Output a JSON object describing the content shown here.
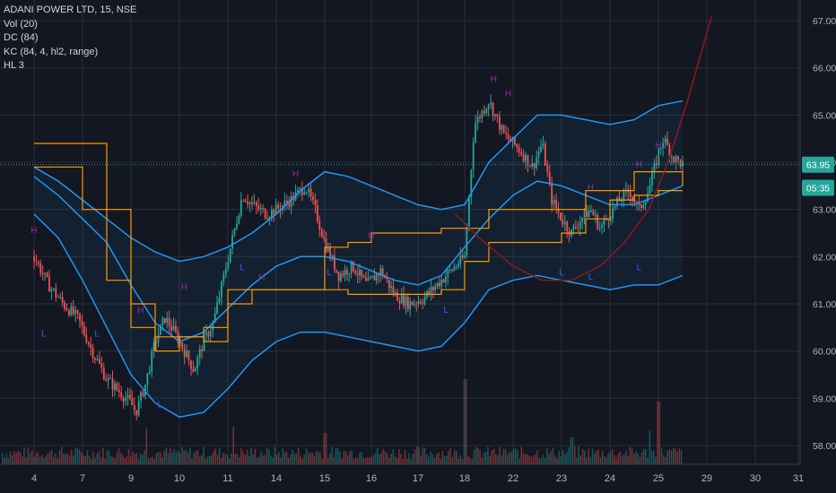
{
  "legend": {
    "symbol": "ADANI POWER LTD, 15, NSE",
    "indicators": [
      "Vol (20)",
      "DC (84)",
      "KC (84, 4, hl2, range)",
      "HL 3"
    ]
  },
  "colors": {
    "background": "#131722",
    "grid": "#2a2e39",
    "up": "#26a69a",
    "down": "#ef5350",
    "keltner": "#2196f3",
    "donchian": "#ff9800",
    "arc": "#8b1a1a",
    "pivot_high": "#9c27b0",
    "pivot_low": "#2962ff",
    "last_price_badge": "#26a69a",
    "timer_badge": "#26a69a"
  },
  "chart_data": {
    "type": "candlestick",
    "y_axis": {
      "ticks": [
        "58.00",
        "59.00",
        "60.00",
        "61.00",
        "62.00",
        "63.00",
        "64.00",
        "65.00",
        "66.00",
        "67.00"
      ],
      "ylim": [
        57.6,
        67.4
      ]
    },
    "x_axis": {
      "ticks": [
        "4",
        "7",
        "9",
        "10",
        "11",
        "14",
        "15",
        "16",
        "17",
        "18",
        "22",
        "23",
        "24",
        "25",
        "29",
        "30",
        "31"
      ],
      "tick_index": [
        0,
        1,
        2,
        3,
        4,
        5,
        6,
        7,
        8,
        9,
        10,
        11,
        12,
        13,
        14,
        15,
        16
      ]
    },
    "last_price": {
      "label": "63.95",
      "value": 63.95
    },
    "countdown": {
      "label": "05:35",
      "value": 63.46
    },
    "keltner_upper": [
      [
        0,
        63.9
      ],
      [
        0.5,
        63.6
      ],
      [
        1,
        63.2
      ],
      [
        1.5,
        62.8
      ],
      [
        2,
        62.4
      ],
      [
        2.5,
        62.1
      ],
      [
        3,
        61.9
      ],
      [
        3.5,
        62.0
      ],
      [
        4,
        62.2
      ],
      [
        4.5,
        62.5
      ],
      [
        5,
        62.9
      ],
      [
        5.5,
        63.4
      ],
      [
        6,
        63.8
      ],
      [
        6.5,
        63.7
      ],
      [
        7,
        63.5
      ],
      [
        7.5,
        63.3
      ],
      [
        8,
        63.1
      ],
      [
        8.5,
        63.0
      ],
      [
        9,
        63.1
      ],
      [
        9.5,
        64.0
      ],
      [
        10,
        64.5
      ],
      [
        10.5,
        65.0
      ],
      [
        11,
        65.0
      ],
      [
        11.5,
        64.9
      ],
      [
        12,
        64.8
      ],
      [
        12.5,
        64.9
      ],
      [
        13,
        65.2
      ],
      [
        13.5,
        65.3
      ]
    ],
    "keltner_mid": [
      [
        0,
        63.7
      ],
      [
        0.5,
        63.3
      ],
      [
        1,
        62.8
      ],
      [
        1.5,
        62.3
      ],
      [
        2,
        61.4
      ],
      [
        2.5,
        60.6
      ],
      [
        3,
        60.2
      ],
      [
        3.5,
        60.4
      ],
      [
        4,
        60.9
      ],
      [
        4.5,
        61.4
      ],
      [
        5,
        61.8
      ],
      [
        5.5,
        62.0
      ],
      [
        6,
        62.0
      ],
      [
        6.5,
        61.9
      ],
      [
        7,
        61.7
      ],
      [
        7.5,
        61.5
      ],
      [
        8,
        61.4
      ],
      [
        8.5,
        61.6
      ],
      [
        9,
        62.2
      ],
      [
        9.5,
        62.8
      ],
      [
        10,
        63.3
      ],
      [
        10.5,
        63.6
      ],
      [
        11,
        63.5
      ],
      [
        11.5,
        63.3
      ],
      [
        12,
        63.1
      ],
      [
        12.5,
        63.1
      ],
      [
        13,
        63.3
      ],
      [
        13.5,
        63.5
      ]
    ],
    "keltner_lower": [
      [
        0,
        62.9
      ],
      [
        0.5,
        62.4
      ],
      [
        1,
        61.5
      ],
      [
        1.5,
        60.5
      ],
      [
        2,
        59.5
      ],
      [
        2.5,
        58.9
      ],
      [
        3,
        58.6
      ],
      [
        3.5,
        58.7
      ],
      [
        4,
        59.2
      ],
      [
        4.5,
        59.8
      ],
      [
        5,
        60.2
      ],
      [
        5.5,
        60.4
      ],
      [
        6,
        60.4
      ],
      [
        6.5,
        60.3
      ],
      [
        7,
        60.2
      ],
      [
        7.5,
        60.1
      ],
      [
        8,
        60.0
      ],
      [
        8.5,
        60.1
      ],
      [
        9,
        60.6
      ],
      [
        9.5,
        61.3
      ],
      [
        10,
        61.5
      ],
      [
        10.5,
        61.6
      ],
      [
        11,
        61.5
      ],
      [
        11.5,
        61.4
      ],
      [
        12,
        61.3
      ],
      [
        12.5,
        61.4
      ],
      [
        13,
        61.4
      ],
      [
        13.5,
        61.6
      ]
    ],
    "donchian_upper": [
      [
        0,
        64.4
      ],
      [
        1,
        64.4
      ],
      [
        1.5,
        63.0
      ],
      [
        2,
        61.0
      ],
      [
        2.5,
        60.3
      ],
      [
        3,
        60.3
      ],
      [
        3.5,
        60.2
      ],
      [
        4,
        61.3
      ],
      [
        4.5,
        61.3
      ],
      [
        5,
        61.3
      ],
      [
        5.5,
        61.3
      ],
      [
        6,
        62.2
      ],
      [
        6.5,
        62.3
      ],
      [
        7,
        62.5
      ],
      [
        8,
        62.5
      ],
      [
        8.5,
        62.6
      ],
      [
        9,
        62.6
      ],
      [
        9.5,
        63.0
      ],
      [
        10,
        63.0
      ],
      [
        10.5,
        63.0
      ],
      [
        11,
        63.0
      ],
      [
        11.5,
        63.4
      ],
      [
        12,
        63.4
      ],
      [
        12.5,
        63.8
      ],
      [
        13,
        63.8
      ],
      [
        13.5,
        63.5
      ]
    ],
    "donchian_lower": [
      [
        0,
        63.9
      ],
      [
        1,
        63.0
      ],
      [
        1.5,
        61.5
      ],
      [
        2,
        60.5
      ],
      [
        2.5,
        60.0
      ],
      [
        3,
        60.3
      ],
      [
        3.5,
        60.5
      ],
      [
        4,
        61.0
      ],
      [
        4.5,
        61.3
      ],
      [
        5,
        61.3
      ],
      [
        5.5,
        61.3
      ],
      [
        6,
        61.3
      ],
      [
        6.5,
        61.2
      ],
      [
        7,
        61.2
      ],
      [
        7.5,
        61.2
      ],
      [
        8,
        61.2
      ],
      [
        8.5,
        61.3
      ],
      [
        9,
        61.9
      ],
      [
        9.5,
        62.3
      ],
      [
        10,
        62.3
      ],
      [
        10.5,
        62.3
      ],
      [
        11,
        62.5
      ],
      [
        11.5,
        62.8
      ],
      [
        12,
        63.2
      ],
      [
        12.5,
        63.3
      ],
      [
        13,
        63.4
      ],
      [
        13.5,
        63.4
      ]
    ],
    "arc": [
      [
        8.8,
        62.9
      ],
      [
        9.3,
        62.4
      ],
      [
        10,
        61.8
      ],
      [
        10.6,
        61.5
      ],
      [
        11.2,
        61.5
      ],
      [
        11.8,
        61.8
      ],
      [
        12.3,
        62.3
      ],
      [
        12.8,
        63.0
      ],
      [
        13.2,
        64.0
      ],
      [
        13.6,
        65.3
      ],
      [
        14.1,
        67.1
      ]
    ],
    "close_path": [
      [
        0,
        62.0
      ],
      [
        0.3,
        61.4
      ],
      [
        0.6,
        61.0
      ],
      [
        0.9,
        60.7
      ],
      [
        1.2,
        60.0
      ],
      [
        1.5,
        59.4
      ],
      [
        1.8,
        59.1
      ],
      [
        2.0,
        58.9
      ],
      [
        2.1,
        58.7
      ],
      [
        2.3,
        59.3
      ],
      [
        2.5,
        60.2
      ],
      [
        2.7,
        60.7
      ],
      [
        2.9,
        60.4
      ],
      [
        3.1,
        60.0
      ],
      [
        3.3,
        59.6
      ],
      [
        3.5,
        60.2
      ],
      [
        3.7,
        60.6
      ],
      [
        3.9,
        61.5
      ],
      [
        4.1,
        62.4
      ],
      [
        4.3,
        63.3
      ],
      [
        4.5,
        63.1
      ],
      [
        4.8,
        62.9
      ],
      [
        5.0,
        63.0
      ],
      [
        5.3,
        63.2
      ],
      [
        5.6,
        63.5
      ],
      [
        5.8,
        63.0
      ],
      [
        6.0,
        62.3
      ],
      [
        6.3,
        61.6
      ],
      [
        6.6,
        61.8
      ],
      [
        6.9,
        61.4
      ],
      [
        7.2,
        61.7
      ],
      [
        7.5,
        61.2
      ],
      [
        7.8,
        61.0
      ],
      [
        8.1,
        61.1
      ],
      [
        8.4,
        61.4
      ],
      [
        8.7,
        61.7
      ],
      [
        9.0,
        62.0
      ],
      [
        9.2,
        64.8
      ],
      [
        9.5,
        65.3
      ],
      [
        9.8,
        64.6
      ],
      [
        10.1,
        64.3
      ],
      [
        10.4,
        63.9
      ],
      [
        10.6,
        64.4
      ],
      [
        10.8,
        63.2
      ],
      [
        11.0,
        62.8
      ],
      [
        11.2,
        62.5
      ],
      [
        11.4,
        62.8
      ],
      [
        11.6,
        63.0
      ],
      [
        11.8,
        62.6
      ],
      [
        12.0,
        62.9
      ],
      [
        12.2,
        63.2
      ],
      [
        12.4,
        63.4
      ],
      [
        12.6,
        63.0
      ],
      [
        12.8,
        63.4
      ],
      [
        13.0,
        64.2
      ],
      [
        13.1,
        64.5
      ],
      [
        13.3,
        64.1
      ],
      [
        13.5,
        63.95
      ]
    ],
    "volume": {
      "ylim": [
        0,
        100
      ],
      "spikes": [
        [
          9.0,
          95
        ],
        [
          2.3,
          40
        ],
        [
          4.1,
          42
        ],
        [
          6.0,
          35
        ],
        [
          12.8,
          38
        ],
        [
          13.0,
          70
        ],
        [
          11.2,
          30
        ]
      ]
    },
    "pivot_highs": [
      [
        0.0,
        62.5
      ],
      [
        2.2,
        60.8
      ],
      [
        3.1,
        61.3
      ],
      [
        4.7,
        61.5
      ],
      [
        5.4,
        63.7
      ],
      [
        7.0,
        62.4
      ],
      [
        9.6,
        65.7
      ],
      [
        9.9,
        65.4
      ],
      [
        11.6,
        63.4
      ],
      [
        12.6,
        63.9
      ],
      [
        13.0,
        64.3
      ]
    ],
    "pivot_lows": [
      [
        0.2,
        60.5
      ],
      [
        1.3,
        60.5
      ],
      [
        2.6,
        59.0
      ],
      [
        4.3,
        61.9
      ],
      [
        6.1,
        61.8
      ],
      [
        8.6,
        61.0
      ],
      [
        11.0,
        61.8
      ],
      [
        11.6,
        61.7
      ],
      [
        12.6,
        61.9
      ]
    ]
  }
}
